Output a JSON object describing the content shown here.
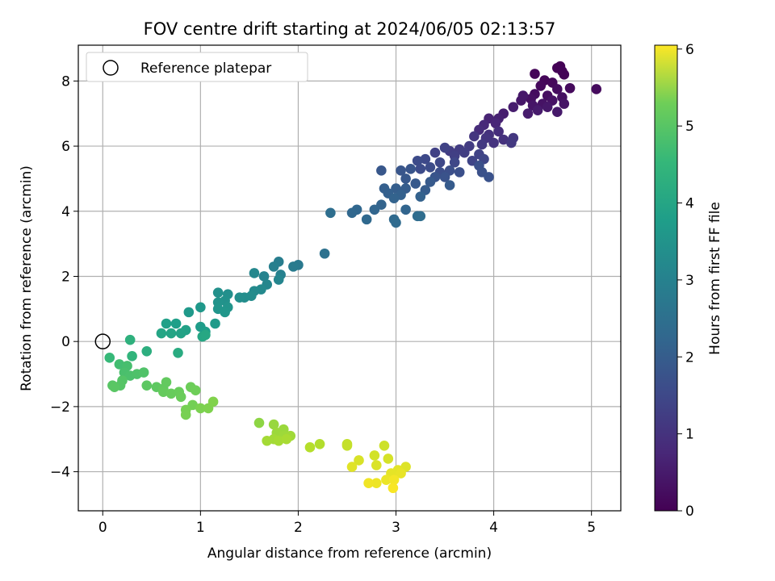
{
  "chart_data": {
    "type": "scatter",
    "title": "FOV centre drift starting at 2024/06/05 02:13:57",
    "xlabel": "Angular distance from reference (arcmin)",
    "ylabel": "Rotation from reference (arcmin)",
    "xlim": [
      -0.25,
      5.3
    ],
    "ylim": [
      -5.2,
      9.1
    ],
    "xticks": [
      0,
      1,
      2,
      3,
      4,
      5
    ],
    "yticks": [
      -4,
      -2,
      0,
      2,
      4,
      6,
      8
    ],
    "grid": true,
    "legend": {
      "location": "upper-left",
      "entries": [
        "Reference platepar"
      ]
    },
    "reference_point": {
      "x": 0,
      "y": 0
    },
    "colorbar": {
      "label": "Hours from first FF file",
      "range": [
        0,
        6.05
      ],
      "ticks": [
        0,
        1,
        2,
        3,
        4,
        5,
        6
      ],
      "colormap": "viridis"
    },
    "points": [
      {
        "x": 4.68,
        "y": 8.45,
        "h": 0.02
      },
      {
        "x": 4.65,
        "y": 8.4,
        "h": 0.03
      },
      {
        "x": 4.7,
        "y": 8.3,
        "h": 0.05
      },
      {
        "x": 4.72,
        "y": 8.2,
        "h": 0.06
      },
      {
        "x": 4.42,
        "y": 8.22,
        "h": 0.08
      },
      {
        "x": 4.52,
        "y": 8.02,
        "h": 0.1
      },
      {
        "x": 4.6,
        "y": 7.95,
        "h": 0.12
      },
      {
        "x": 4.48,
        "y": 7.85,
        "h": 0.14
      },
      {
        "x": 4.78,
        "y": 7.78,
        "h": 0.15
      },
      {
        "x": 5.05,
        "y": 7.75,
        "h": 0.17
      },
      {
        "x": 4.65,
        "y": 7.75,
        "h": 0.19
      },
      {
        "x": 4.42,
        "y": 7.6,
        "h": 0.21
      },
      {
        "x": 4.55,
        "y": 7.55,
        "h": 0.23
      },
      {
        "x": 4.7,
        "y": 7.5,
        "h": 0.25
      },
      {
        "x": 4.38,
        "y": 7.45,
        "h": 0.27
      },
      {
        "x": 4.6,
        "y": 7.4,
        "h": 0.29
      },
      {
        "x": 4.5,
        "y": 7.3,
        "h": 0.31
      },
      {
        "x": 4.72,
        "y": 7.3,
        "h": 0.33
      },
      {
        "x": 4.4,
        "y": 7.25,
        "h": 0.35
      },
      {
        "x": 4.28,
        "y": 7.4,
        "h": 0.37
      },
      {
        "x": 4.3,
        "y": 7.55,
        "h": 0.39
      },
      {
        "x": 4.55,
        "y": 7.2,
        "h": 0.4
      },
      {
        "x": 4.65,
        "y": 7.05,
        "h": 0.42
      },
      {
        "x": 4.45,
        "y": 7.1,
        "h": 0.44
      },
      {
        "x": 4.35,
        "y": 7.0,
        "h": 0.46
      },
      {
        "x": 4.2,
        "y": 7.2,
        "h": 0.48
      },
      {
        "x": 4.1,
        "y": 7.0,
        "h": 0.5
      },
      {
        "x": 4.05,
        "y": 6.85,
        "h": 0.55
      },
      {
        "x": 3.95,
        "y": 6.85,
        "h": 0.6
      },
      {
        "x": 4.02,
        "y": 6.7,
        "h": 0.65
      },
      {
        "x": 3.9,
        "y": 6.65,
        "h": 0.7
      },
      {
        "x": 3.85,
        "y": 6.5,
        "h": 0.75
      },
      {
        "x": 4.05,
        "y": 6.45,
        "h": 0.8
      },
      {
        "x": 3.95,
        "y": 6.35,
        "h": 0.85
      },
      {
        "x": 4.1,
        "y": 6.2,
        "h": 0.88
      },
      {
        "x": 4.0,
        "y": 6.1,
        "h": 0.9
      },
      {
        "x": 3.92,
        "y": 6.25,
        "h": 0.92
      },
      {
        "x": 3.8,
        "y": 6.3,
        "h": 0.95
      },
      {
        "x": 4.2,
        "y": 6.25,
        "h": 0.97
      },
      {
        "x": 4.18,
        "y": 6.1,
        "h": 0.99
      },
      {
        "x": 3.88,
        "y": 6.05,
        "h": 1.02
      },
      {
        "x": 3.75,
        "y": 6.0,
        "h": 1.05
      },
      {
        "x": 3.65,
        "y": 5.9,
        "h": 1.08
      },
      {
        "x": 3.55,
        "y": 5.85,
        "h": 1.1
      },
      {
        "x": 3.7,
        "y": 5.8,
        "h": 1.12
      },
      {
        "x": 3.6,
        "y": 5.7,
        "h": 1.15
      },
      {
        "x": 3.4,
        "y": 5.8,
        "h": 1.18
      },
      {
        "x": 3.5,
        "y": 5.95,
        "h": 1.2
      },
      {
        "x": 3.85,
        "y": 5.75,
        "h": 1.22
      },
      {
        "x": 3.78,
        "y": 5.55,
        "h": 1.25
      },
      {
        "x": 3.9,
        "y": 5.6,
        "h": 1.28
      },
      {
        "x": 3.6,
        "y": 5.5,
        "h": 1.3
      },
      {
        "x": 3.45,
        "y": 5.5,
        "h": 1.32
      },
      {
        "x": 3.3,
        "y": 5.6,
        "h": 1.35
      },
      {
        "x": 3.22,
        "y": 5.55,
        "h": 1.38
      },
      {
        "x": 3.35,
        "y": 5.35,
        "h": 1.4
      },
      {
        "x": 3.25,
        "y": 5.3,
        "h": 1.42
      },
      {
        "x": 3.45,
        "y": 5.2,
        "h": 1.45
      },
      {
        "x": 3.55,
        "y": 5.25,
        "h": 1.47
      },
      {
        "x": 3.65,
        "y": 5.2,
        "h": 1.48
      },
      {
        "x": 3.85,
        "y": 5.4,
        "h": 1.5
      },
      {
        "x": 3.88,
        "y": 5.2,
        "h": 1.52
      },
      {
        "x": 3.95,
        "y": 5.05,
        "h": 1.55
      },
      {
        "x": 3.5,
        "y": 5.05,
        "h": 1.57
      },
      {
        "x": 3.4,
        "y": 5.05,
        "h": 1.58
      },
      {
        "x": 3.15,
        "y": 5.3,
        "h": 1.6
      },
      {
        "x": 3.05,
        "y": 5.25,
        "h": 1.62
      },
      {
        "x": 2.85,
        "y": 5.25,
        "h": 1.65
      },
      {
        "x": 3.1,
        "y": 5.0,
        "h": 1.67
      },
      {
        "x": 3.2,
        "y": 4.85,
        "h": 1.7
      },
      {
        "x": 3.35,
        "y": 4.9,
        "h": 1.72
      },
      {
        "x": 3.55,
        "y": 4.8,
        "h": 1.74
      },
      {
        "x": 3.3,
        "y": 4.65,
        "h": 1.76
      },
      {
        "x": 3.1,
        "y": 4.7,
        "h": 1.78
      },
      {
        "x": 3.0,
        "y": 4.7,
        "h": 1.8
      },
      {
        "x": 2.88,
        "y": 4.7,
        "h": 1.82
      },
      {
        "x": 2.92,
        "y": 4.55,
        "h": 1.84
      },
      {
        "x": 3.05,
        "y": 4.5,
        "h": 1.86
      },
      {
        "x": 3.25,
        "y": 4.45,
        "h": 1.88
      },
      {
        "x": 2.98,
        "y": 4.4,
        "h": 1.9
      },
      {
        "x": 2.85,
        "y": 4.2,
        "h": 1.92
      },
      {
        "x": 3.1,
        "y": 4.05,
        "h": 1.95
      },
      {
        "x": 2.78,
        "y": 4.05,
        "h": 1.97
      },
      {
        "x": 2.6,
        "y": 4.05,
        "h": 2.0
      },
      {
        "x": 2.55,
        "y": 3.95,
        "h": 2.02
      },
      {
        "x": 2.7,
        "y": 3.75,
        "h": 2.05
      },
      {
        "x": 2.98,
        "y": 3.75,
        "h": 2.07
      },
      {
        "x": 3.0,
        "y": 3.65,
        "h": 2.1
      },
      {
        "x": 3.22,
        "y": 3.85,
        "h": 2.12
      },
      {
        "x": 3.25,
        "y": 3.85,
        "h": 2.14
      },
      {
        "x": 2.33,
        "y": 3.95,
        "h": 2.17
      },
      {
        "x": 2.27,
        "y": 2.7,
        "h": 2.25
      },
      {
        "x": 2.0,
        "y": 2.35,
        "h": 2.45
      },
      {
        "x": 1.95,
        "y": 2.3,
        "h": 2.5
      },
      {
        "x": 1.8,
        "y": 2.45,
        "h": 2.55
      },
      {
        "x": 1.75,
        "y": 2.3,
        "h": 2.6
      },
      {
        "x": 1.82,
        "y": 2.05,
        "h": 2.65
      },
      {
        "x": 1.65,
        "y": 2.0,
        "h": 2.7
      },
      {
        "x": 1.8,
        "y": 1.9,
        "h": 2.75
      },
      {
        "x": 1.68,
        "y": 1.75,
        "h": 2.78
      },
      {
        "x": 1.55,
        "y": 2.1,
        "h": 2.8
      },
      {
        "x": 1.62,
        "y": 1.6,
        "h": 2.85
      },
      {
        "x": 1.55,
        "y": 1.55,
        "h": 2.88
      },
      {
        "x": 1.52,
        "y": 1.4,
        "h": 2.92
      },
      {
        "x": 1.45,
        "y": 1.35,
        "h": 2.95
      },
      {
        "x": 1.4,
        "y": 1.35,
        "h": 2.98
      },
      {
        "x": 1.28,
        "y": 1.45,
        "h": 3.0
      },
      {
        "x": 1.18,
        "y": 1.5,
        "h": 3.03
      },
      {
        "x": 1.25,
        "y": 1.25,
        "h": 3.06
      },
      {
        "x": 1.18,
        "y": 1.2,
        "h": 3.09
      },
      {
        "x": 1.28,
        "y": 1.05,
        "h": 3.12
      },
      {
        "x": 1.18,
        "y": 1.0,
        "h": 3.15
      },
      {
        "x": 1.25,
        "y": 0.9,
        "h": 3.18
      },
      {
        "x": 1.0,
        "y": 1.05,
        "h": 3.22
      },
      {
        "x": 0.88,
        "y": 0.9,
        "h": 3.25
      },
      {
        "x": 1.15,
        "y": 0.55,
        "h": 3.28
      },
      {
        "x": 1.0,
        "y": 0.45,
        "h": 3.32
      },
      {
        "x": 1.05,
        "y": 0.3,
        "h": 3.35
      },
      {
        "x": 0.75,
        "y": 0.55,
        "h": 3.38
      },
      {
        "x": 0.65,
        "y": 0.55,
        "h": 3.42
      },
      {
        "x": 0.85,
        "y": 0.35,
        "h": 3.45
      },
      {
        "x": 0.8,
        "y": 0.25,
        "h": 3.48
      },
      {
        "x": 0.7,
        "y": 0.25,
        "h": 3.52
      },
      {
        "x": 0.6,
        "y": 0.25,
        "h": 3.55
      },
      {
        "x": 1.02,
        "y": 0.15,
        "h": 3.58
      },
      {
        "x": 1.05,
        "y": 0.2,
        "h": 3.6
      },
      {
        "x": 0.77,
        "y": -0.35,
        "h": 3.7
      },
      {
        "x": 0.45,
        "y": -0.3,
        "h": 3.8
      },
      {
        "x": 0.28,
        "y": 0.05,
        "h": 3.85
      },
      {
        "x": 0.3,
        "y": -0.45,
        "h": 3.95
      },
      {
        "x": 0.07,
        "y": -0.5,
        "h": 4.05
      },
      {
        "x": 0.17,
        "y": -0.7,
        "h": 4.2
      },
      {
        "x": 0.25,
        "y": -0.75,
        "h": 4.25
      },
      {
        "x": 0.22,
        "y": -0.95,
        "h": 4.28
      },
      {
        "x": 0.28,
        "y": -1.05,
        "h": 4.3
      },
      {
        "x": 0.35,
        "y": -1.0,
        "h": 4.33
      },
      {
        "x": 0.42,
        "y": -0.95,
        "h": 4.36
      },
      {
        "x": 0.2,
        "y": -1.2,
        "h": 4.4
      },
      {
        "x": 0.18,
        "y": -1.35,
        "h": 4.42
      },
      {
        "x": 0.1,
        "y": -1.35,
        "h": 4.45
      },
      {
        "x": 0.12,
        "y": -1.4,
        "h": 4.47
      },
      {
        "x": 0.45,
        "y": -1.35,
        "h": 4.5
      },
      {
        "x": 0.55,
        "y": -1.4,
        "h": 4.52
      },
      {
        "x": 0.62,
        "y": -1.45,
        "h": 4.55
      },
      {
        "x": 0.65,
        "y": -1.25,
        "h": 4.57
      },
      {
        "x": 0.62,
        "y": -1.55,
        "h": 4.6
      },
      {
        "x": 0.7,
        "y": -1.6,
        "h": 4.62
      },
      {
        "x": 0.78,
        "y": -1.55,
        "h": 4.64
      },
      {
        "x": 0.8,
        "y": -1.7,
        "h": 4.66
      },
      {
        "x": 0.9,
        "y": -1.4,
        "h": 4.68
      },
      {
        "x": 0.95,
        "y": -1.5,
        "h": 4.7
      },
      {
        "x": 0.92,
        "y": -1.95,
        "h": 4.75
      },
      {
        "x": 0.85,
        "y": -2.1,
        "h": 4.78
      },
      {
        "x": 0.85,
        "y": -2.25,
        "h": 4.8
      },
      {
        "x": 1.0,
        "y": -2.05,
        "h": 4.83
      },
      {
        "x": 1.08,
        "y": -2.05,
        "h": 4.86
      },
      {
        "x": 1.13,
        "y": -1.85,
        "h": 4.89
      },
      {
        "x": 1.6,
        "y": -2.5,
        "h": 5.0
      },
      {
        "x": 1.75,
        "y": -2.55,
        "h": 5.1
      },
      {
        "x": 1.85,
        "y": -2.7,
        "h": 5.12
      },
      {
        "x": 1.78,
        "y": -2.8,
        "h": 5.14
      },
      {
        "x": 1.85,
        "y": -2.9,
        "h": 5.16
      },
      {
        "x": 1.92,
        "y": -2.9,
        "h": 5.18
      },
      {
        "x": 1.75,
        "y": -3.0,
        "h": 5.2
      },
      {
        "x": 1.68,
        "y": -3.05,
        "h": 5.22
      },
      {
        "x": 1.8,
        "y": -3.05,
        "h": 5.24
      },
      {
        "x": 1.88,
        "y": -3.0,
        "h": 5.26
      },
      {
        "x": 2.22,
        "y": -3.15,
        "h": 5.35
      },
      {
        "x": 2.12,
        "y": -3.25,
        "h": 5.38
      },
      {
        "x": 2.5,
        "y": -3.15,
        "h": 5.5
      },
      {
        "x": 2.5,
        "y": -3.2,
        "h": 5.52
      },
      {
        "x": 2.88,
        "y": -3.2,
        "h": 5.6
      },
      {
        "x": 2.78,
        "y": -3.5,
        "h": 5.65
      },
      {
        "x": 2.92,
        "y": -3.6,
        "h": 5.68
      },
      {
        "x": 2.62,
        "y": -3.65,
        "h": 5.7
      },
      {
        "x": 2.8,
        "y": -3.8,
        "h": 5.72
      },
      {
        "x": 3.1,
        "y": -3.85,
        "h": 5.75
      },
      {
        "x": 2.55,
        "y": -3.85,
        "h": 5.78
      },
      {
        "x": 3.02,
        "y": -3.95,
        "h": 5.8
      },
      {
        "x": 2.95,
        "y": -4.05,
        "h": 5.83
      },
      {
        "x": 3.05,
        "y": -4.05,
        "h": 5.85
      },
      {
        "x": 2.9,
        "y": -4.25,
        "h": 5.88
      },
      {
        "x": 2.8,
        "y": -4.35,
        "h": 5.9
      },
      {
        "x": 2.72,
        "y": -4.35,
        "h": 5.93
      },
      {
        "x": 2.98,
        "y": -4.25,
        "h": 5.96
      },
      {
        "x": 2.97,
        "y": -4.5,
        "h": 6.0
      }
    ]
  }
}
